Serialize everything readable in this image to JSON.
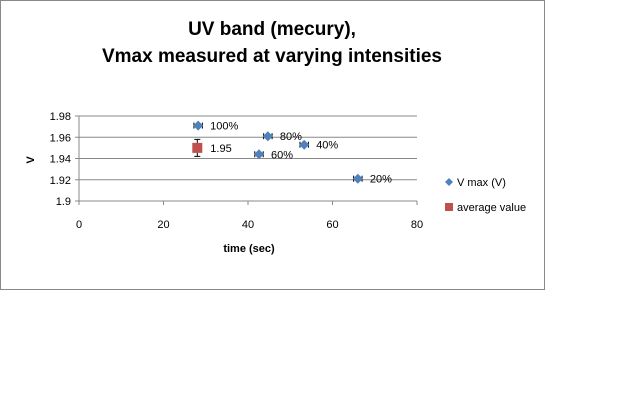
{
  "chart_data": {
    "type": "scatter",
    "title": [
      "UV band (mecury),",
      "Vmax measured at varying intensities"
    ],
    "xlabel": "time (sec)",
    "ylabel": "V",
    "xlim": [
      0,
      80
    ],
    "ylim": [
      1.9,
      1.98
    ],
    "xticks": [
      "0",
      "20",
      "40",
      "60",
      "80"
    ],
    "yticks": [
      "1.9",
      "1.92",
      "1.94",
      "1.96",
      "1.98"
    ],
    "grid": "horizontal",
    "legend_position": "right",
    "series": [
      {
        "name": "V max (V)",
        "color": "#4F81BD",
        "marker": "diamond",
        "points": [
          {
            "x": 28.2,
            "y": 1.971,
            "label": "100%"
          },
          {
            "x": 44.7,
            "y": 1.961,
            "label": "80%"
          },
          {
            "x": 53.3,
            "y": 1.953,
            "label": "40%"
          },
          {
            "x": 42.6,
            "y": 1.944,
            "label": "60%"
          },
          {
            "x": 66.0,
            "y": 1.921,
            "label": "20%"
          }
        ],
        "x_error": 1
      },
      {
        "name": "average value",
        "color": "#C0504D",
        "marker": "square",
        "points": [
          {
            "x": 28,
            "y": 1.95,
            "label": "1.95"
          }
        ],
        "y_error": 0.008
      }
    ]
  }
}
